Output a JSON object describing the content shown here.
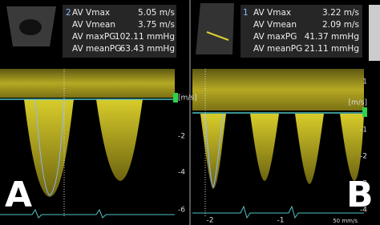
{
  "panels": [
    {
      "letter": "A",
      "marker": "2",
      "measurements": [
        {
          "label": "AV Vmax",
          "value": "5.05 m/s"
        },
        {
          "label": "AV Vmean",
          "value": "3.75 m/s"
        },
        {
          "label": "AV maxPG",
          "value": "102.11 mmHg"
        },
        {
          "label": "AV meanPG",
          "value": "63.43 mmHg"
        }
      ],
      "unit": "[m/s]",
      "ticks": [
        "-2",
        "-4",
        "-6"
      ]
    },
    {
      "letter": "B",
      "marker": "1",
      "measurements": [
        {
          "label": "AV Vmax",
          "value": "3.22 m/s"
        },
        {
          "label": "AV Vmean",
          "value": "2.09 m/s"
        },
        {
          "label": "AV maxPG",
          "value": "41.37 mmHg"
        },
        {
          "label": "AV meanPG",
          "value": "21.11 mmHg"
        }
      ],
      "unit": "[m/s]",
      "ticks": [
        "1",
        "-1",
        "-2",
        "-3",
        "-4"
      ],
      "time_ticks": [
        "-2",
        "-1"
      ],
      "sweep": "50 mm/s"
    }
  ]
}
